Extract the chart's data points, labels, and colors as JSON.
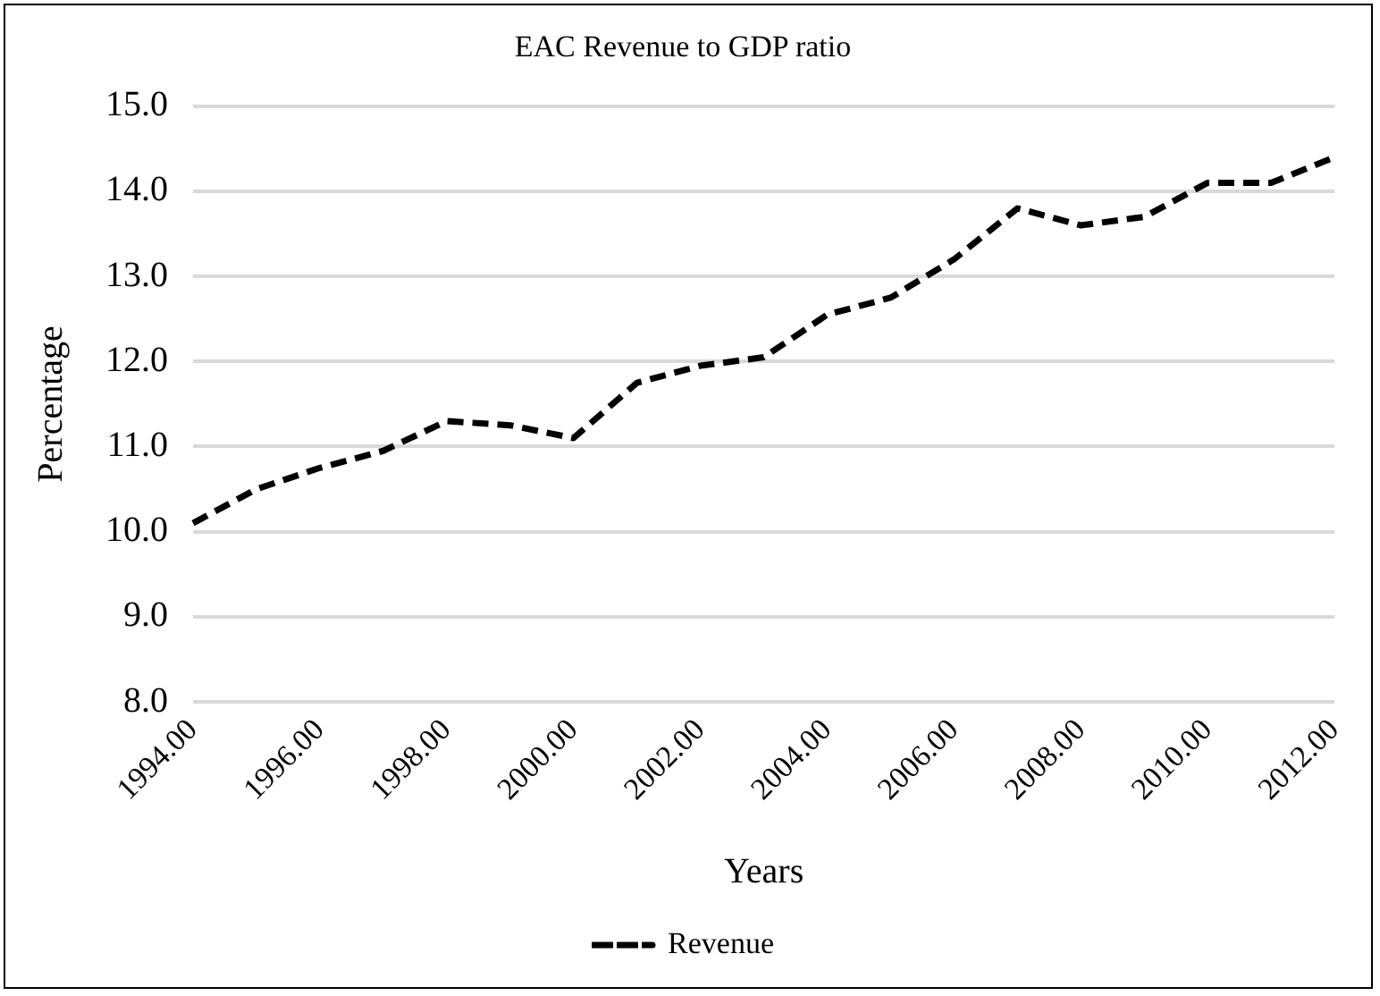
{
  "chart_data": {
    "type": "line",
    "title": "EAC Revenue to GDP ratio",
    "xlabel": "Years",
    "ylabel": "Percentage",
    "categories": [
      "1994.00",
      null,
      "1996.00",
      null,
      "1998.00",
      null,
      "2000.00",
      null,
      "2002.00",
      null,
      "2004.00",
      null,
      "2006.00",
      null,
      "2008.00",
      null,
      "2010.00",
      null,
      "2012.00"
    ],
    "series": [
      {
        "name": "Revenue",
        "color": "#000000",
        "values": [
          10.1,
          10.5,
          10.75,
          10.95,
          11.3,
          11.25,
          11.1,
          11.75,
          11.95,
          12.05,
          12.55,
          12.75,
          13.2,
          13.8,
          13.6,
          13.7,
          14.1,
          14.1,
          14.4
        ]
      }
    ],
    "ylim": [
      8,
      15
    ],
    "yticks": [
      {
        "value": 8,
        "label": "8.0"
      },
      {
        "value": 9,
        "label": "9.0"
      },
      {
        "value": 10,
        "label": "10.0"
      },
      {
        "value": 11,
        "label": "11.0"
      },
      {
        "value": 12,
        "label": "12.0"
      },
      {
        "value": 13,
        "label": "13.0"
      },
      {
        "value": 14,
        "label": "14.0"
      },
      {
        "value": 15,
        "label": "15.0"
      }
    ],
    "grid": "y",
    "legend": "bottom",
    "line_style": "dashed",
    "marker": "none"
  }
}
